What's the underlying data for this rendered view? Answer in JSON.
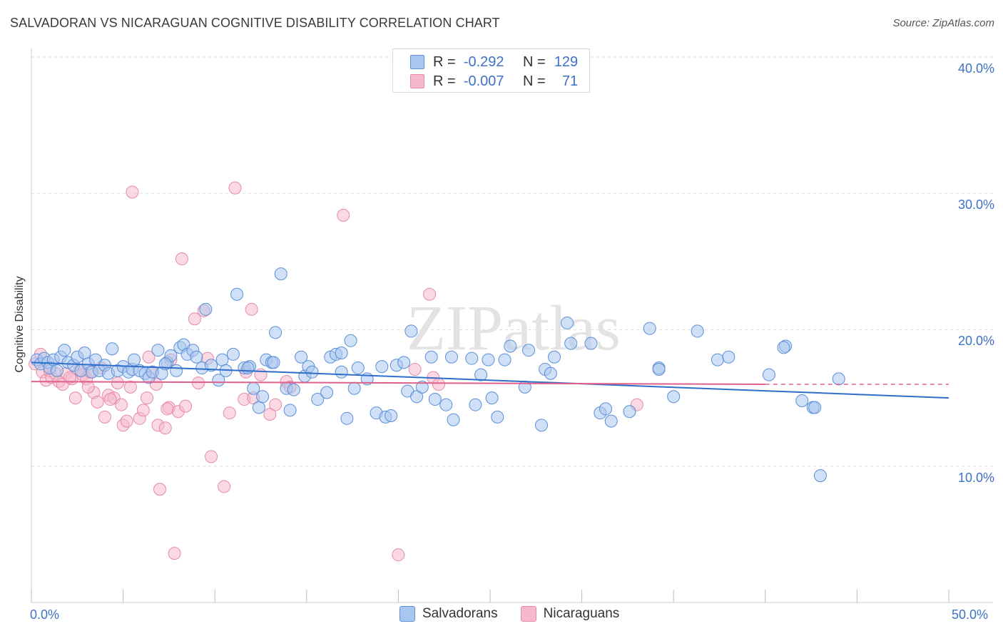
{
  "title": "SALVADORAN VS NICARAGUAN COGNITIVE DISABILITY CORRELATION CHART",
  "source": "Source: ZipAtlas.com",
  "watermark": "ZIPatlas",
  "legend_top": {
    "rows": [
      {
        "r_label": "R =",
        "r_value": "-0.292",
        "n_label": "N =",
        "n_value": "129"
      },
      {
        "r_label": "R =",
        "r_value": "-0.007",
        "n_label": "N =",
        "n_value": "71"
      }
    ]
  },
  "legend_bottom": [
    "Salvadorans",
    "Nicaraguans"
  ],
  "colors": {
    "salvadoran_fill": "#a9c6ef",
    "salvadoran_stroke": "#5b8fd8",
    "salvadoran_line": "#2f6fcc",
    "nicaraguan_fill": "#f6b9cc",
    "nicaraguan_stroke": "#e58aa8",
    "nicaraguan_line": "#e0608a",
    "axis_text": "#3d72c7",
    "grid": "#dddddd"
  },
  "chart_data": {
    "type": "scatter",
    "xlabel": "",
    "ylabel": "Cognitive Disability",
    "xlim": [
      0,
      50
    ],
    "ylim": [
      0,
      40
    ],
    "x_tick_labels": [
      "0.0%",
      "50.0%"
    ],
    "y_tick_labels": [
      "10.0%",
      "20.0%",
      "30.0%",
      "40.0%"
    ],
    "y_ticks": [
      10,
      20,
      30,
      40
    ],
    "grid": true,
    "legend_placement": "top-center",
    "series": [
      {
        "name": "Salvadorans",
        "r": -0.292,
        "n": 129,
        "trend": {
          "x0": 0,
          "y0": 17.6,
          "x1": 50,
          "y1": 15.0
        },
        "points": [
          [
            0.3,
            17.8
          ],
          [
            0.5,
            17.5
          ],
          [
            0.7,
            17.9
          ],
          [
            0.9,
            17.6
          ],
          [
            1.0,
            17.2
          ],
          [
            1.2,
            17.8
          ],
          [
            1.4,
            17.0
          ],
          [
            1.6,
            18.0
          ],
          [
            1.8,
            18.5
          ],
          [
            2.0,
            17.6
          ],
          [
            2.3,
            17.4
          ],
          [
            2.5,
            18.0
          ],
          [
            2.7,
            17.0
          ],
          [
            2.9,
            18.3
          ],
          [
            3.1,
            17.5
          ],
          [
            3.3,
            16.9
          ],
          [
            3.5,
            17.8
          ],
          [
            3.7,
            17.0
          ],
          [
            4.0,
            17.4
          ],
          [
            4.2,
            16.8
          ],
          [
            4.4,
            18.6
          ],
          [
            4.7,
            17.0
          ],
          [
            5.0,
            17.3
          ],
          [
            5.3,
            16.9
          ],
          [
            5.5,
            17.1
          ],
          [
            5.6,
            17.8
          ],
          [
            5.9,
            17.0
          ],
          [
            6.2,
            16.8
          ],
          [
            6.4,
            16.5
          ],
          [
            6.6,
            16.9
          ],
          [
            6.9,
            18.5
          ],
          [
            7.1,
            16.8
          ],
          [
            7.4,
            17.6
          ],
          [
            7.6,
            18.1
          ],
          [
            7.9,
            17.0
          ],
          [
            8.1,
            18.7
          ],
          [
            8.3,
            18.9
          ],
          [
            8.5,
            18.2
          ],
          [
            8.8,
            18.5
          ],
          [
            9.0,
            18.0
          ],
          [
            9.3,
            17.2
          ],
          [
            9.5,
            21.5
          ],
          [
            9.8,
            17.4
          ],
          [
            10.2,
            16.3
          ],
          [
            10.4,
            17.8
          ],
          [
            10.6,
            17.0
          ],
          [
            11.0,
            18.2
          ],
          [
            11.2,
            22.6
          ],
          [
            11.6,
            17.2
          ],
          [
            11.9,
            17.3
          ],
          [
            12.1,
            15.7
          ],
          [
            12.4,
            14.3
          ],
          [
            12.6,
            15.1
          ],
          [
            12.8,
            17.8
          ],
          [
            13.1,
            17.6
          ],
          [
            13.3,
            19.8
          ],
          [
            13.6,
            24.1
          ],
          [
            13.9,
            15.7
          ],
          [
            14.1,
            14.1
          ],
          [
            14.3,
            15.6
          ],
          [
            14.7,
            18.0
          ],
          [
            14.9,
            16.6
          ],
          [
            15.1,
            17.3
          ],
          [
            15.3,
            16.9
          ],
          [
            15.6,
            14.9
          ],
          [
            16.1,
            15.4
          ],
          [
            16.3,
            18.0
          ],
          [
            16.6,
            18.2
          ],
          [
            16.9,
            16.9
          ],
          [
            16.9,
            18.3
          ],
          [
            17.2,
            13.5
          ],
          [
            17.4,
            19.2
          ],
          [
            17.6,
            15.7
          ],
          [
            17.8,
            17.2
          ],
          [
            18.3,
            16.4
          ],
          [
            18.8,
            13.9
          ],
          [
            19.1,
            17.3
          ],
          [
            19.3,
            13.6
          ],
          [
            19.6,
            13.7
          ],
          [
            19.9,
            17.4
          ],
          [
            20.3,
            17.6
          ],
          [
            20.5,
            15.5
          ],
          [
            20.7,
            19.9
          ],
          [
            21.0,
            15.1
          ],
          [
            21.3,
            15.8
          ],
          [
            21.8,
            18.0
          ],
          [
            22.0,
            14.9
          ],
          [
            22.6,
            14.5
          ],
          [
            22.9,
            18.0
          ],
          [
            23.0,
            13.4
          ],
          [
            24.0,
            17.9
          ],
          [
            24.2,
            14.5
          ],
          [
            24.5,
            16.7
          ],
          [
            24.9,
            17.8
          ],
          [
            25.1,
            15.0
          ],
          [
            25.4,
            13.6
          ],
          [
            25.8,
            17.8
          ],
          [
            26.1,
            18.8
          ],
          [
            26.9,
            15.8
          ],
          [
            27.1,
            18.5
          ],
          [
            27.8,
            13.0
          ],
          [
            28.0,
            17.1
          ],
          [
            28.3,
            16.8
          ],
          [
            28.5,
            18.0
          ],
          [
            29.2,
            20.5
          ],
          [
            29.4,
            19.0
          ],
          [
            30.5,
            19.0
          ],
          [
            31.0,
            13.9
          ],
          [
            31.3,
            14.2
          ],
          [
            31.6,
            13.3
          ],
          [
            32.6,
            14.0
          ],
          [
            33.7,
            20.1
          ],
          [
            34.2,
            17.2
          ],
          [
            35.0,
            15.1
          ],
          [
            36.3,
            19.9
          ],
          [
            37.4,
            17.8
          ],
          [
            38.0,
            18.0
          ],
          [
            40.2,
            16.7
          ],
          [
            41.1,
            18.8
          ],
          [
            42.0,
            14.8
          ],
          [
            42.6,
            14.3
          ],
          [
            44.0,
            16.4
          ],
          [
            42.7,
            14.3
          ],
          [
            43.0,
            9.3
          ],
          [
            34.2,
            17.1
          ],
          [
            41.0,
            18.7
          ],
          [
            11.8,
            17.2
          ],
          [
            13.2,
            17.6
          ],
          [
            7.3,
            17.5
          ]
        ]
      },
      {
        "name": "Nicaraguans",
        "r": -0.007,
        "n": 71,
        "trend": {
          "x0": 0,
          "y0": 16.2,
          "x1": 40,
          "y1": 16.0
        },
        "trend_dash": {
          "x0": 40,
          "y0": 16.0,
          "x1": 50,
          "y1": 16.0
        },
        "points": [
          [
            0.2,
            17.5
          ],
          [
            0.6,
            16.9
          ],
          [
            0.8,
            16.3
          ],
          [
            1.0,
            17.0
          ],
          [
            1.1,
            16.5
          ],
          [
            1.3,
            16.8
          ],
          [
            1.5,
            16.2
          ],
          [
            1.7,
            16.0
          ],
          [
            1.9,
            16.8
          ],
          [
            2.2,
            16.4
          ],
          [
            2.4,
            15.0
          ],
          [
            2.6,
            17.0
          ],
          [
            2.8,
            16.7
          ],
          [
            3.0,
            16.4
          ],
          [
            3.2,
            16.9
          ],
          [
            3.4,
            15.4
          ],
          [
            3.6,
            14.7
          ],
          [
            3.8,
            17.2
          ],
          [
            4.0,
            13.6
          ],
          [
            4.2,
            15.2
          ],
          [
            4.5,
            15.0
          ],
          [
            4.7,
            16.1
          ],
          [
            4.9,
            14.5
          ],
          [
            5.0,
            13.0
          ],
          [
            5.2,
            13.3
          ],
          [
            5.4,
            15.8
          ],
          [
            5.5,
            30.1
          ],
          [
            5.9,
            13.5
          ],
          [
            6.1,
            14.1
          ],
          [
            6.3,
            15.0
          ],
          [
            6.4,
            18.0
          ],
          [
            6.6,
            16.9
          ],
          [
            6.9,
            13.0
          ],
          [
            7.0,
            8.3
          ],
          [
            7.3,
            12.8
          ],
          [
            7.5,
            14.3
          ],
          [
            7.6,
            17.8
          ],
          [
            7.8,
            3.6
          ],
          [
            8.0,
            14.0
          ],
          [
            8.2,
            25.2
          ],
          [
            8.4,
            14.4
          ],
          [
            8.9,
            20.8
          ],
          [
            9.4,
            21.4
          ],
          [
            9.6,
            17.9
          ],
          [
            9.8,
            10.7
          ],
          [
            10.5,
            8.5
          ],
          [
            10.8,
            13.9
          ],
          [
            11.1,
            30.4
          ],
          [
            11.6,
            14.9
          ],
          [
            12.0,
            21.5
          ],
          [
            12.1,
            15.0
          ],
          [
            12.5,
            16.7
          ],
          [
            13.0,
            13.8
          ],
          [
            13.3,
            14.5
          ],
          [
            13.9,
            16.2
          ],
          [
            14.1,
            15.8
          ],
          [
            17.0,
            28.4
          ],
          [
            20.0,
            3.5
          ],
          [
            20.9,
            17.1
          ],
          [
            21.7,
            22.6
          ],
          [
            21.9,
            16.5
          ],
          [
            22.2,
            16.0
          ],
          [
            33.0,
            14.5
          ],
          [
            2.1,
            16.5
          ],
          [
            3.1,
            15.8
          ],
          [
            4.3,
            14.9
          ],
          [
            6.8,
            16.0
          ],
          [
            9.1,
            16.1
          ],
          [
            11.7,
            16.9
          ],
          [
            7.4,
            14.2
          ],
          [
            0.5,
            18.2
          ]
        ]
      }
    ]
  }
}
